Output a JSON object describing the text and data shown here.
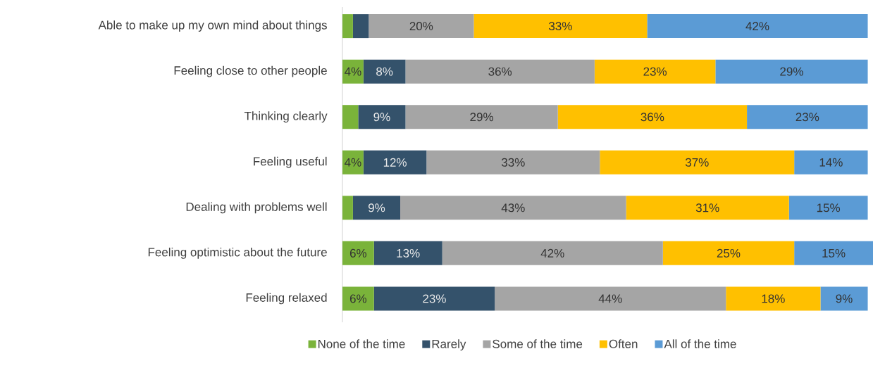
{
  "chart_data": {
    "type": "bar",
    "orientation": "horizontal",
    "stacked": true,
    "legend": "bottom",
    "categories": [
      "Able to make up my own mind about things",
      "Feeling close to other people",
      "Thinking clearly",
      "Feeling useful",
      "Dealing with problems well",
      "Feeling optimistic about the future",
      "Feeling relaxed"
    ],
    "series": [
      {
        "name": "None of the time",
        "color": "#7ab33a",
        "values": [
          2,
          4,
          3,
          4,
          2,
          6,
          6
        ],
        "value_labels": [
          null,
          "4%",
          null,
          "4%",
          null,
          "6%",
          "6%"
        ]
      },
      {
        "name": "Rarely",
        "color": "#34526b",
        "values": [
          3,
          8,
          9,
          12,
          9,
          13,
          23
        ],
        "value_labels": [
          null,
          "8%",
          "9%",
          "12%",
          "9%",
          "13%",
          "23%"
        ]
      },
      {
        "name": "Some of the time",
        "color": "#a5a5a5",
        "values": [
          20,
          36,
          29,
          33,
          43,
          42,
          44
        ],
        "value_labels": [
          "20%",
          "36%",
          "29%",
          "33%",
          "43%",
          "42%",
          "44%"
        ]
      },
      {
        "name": "Often",
        "color": "#ffc000",
        "values": [
          33,
          23,
          36,
          37,
          31,
          25,
          18
        ],
        "value_labels": [
          "33%",
          "23%",
          "36%",
          "37%",
          "31%",
          "25%",
          "18%"
        ]
      },
      {
        "name": "All of the time",
        "color": "#5b9bd5",
        "values": [
          42,
          29,
          23,
          14,
          15,
          15,
          9
        ],
        "value_labels": [
          "42%",
          "29%",
          "23%",
          "14%",
          "15%",
          "15%",
          "9%"
        ]
      }
    ]
  }
}
